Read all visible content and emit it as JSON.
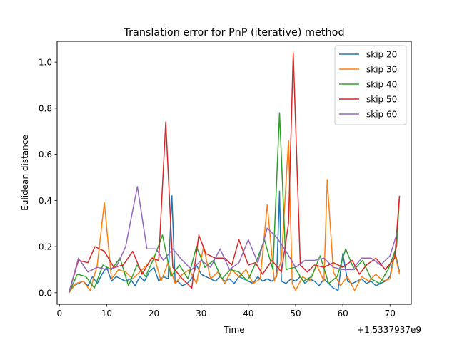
{
  "chart_data": {
    "type": "line",
    "title": "Translation error for PnP (iterative) method",
    "xlabel": "Time",
    "ylabel": "Eulidean distance",
    "x_offset_label": "+1.5337937e9",
    "xlim": [
      -0.5,
      74.5
    ],
    "ylim": [
      -0.05,
      1.09
    ],
    "x_ticks": [
      0,
      10,
      20,
      30,
      40,
      50,
      60,
      70
    ],
    "x_tick_labels": [
      "0",
      "10",
      "20",
      "30",
      "40",
      "50",
      "60",
      "70"
    ],
    "y_ticks": [
      0.0,
      0.2,
      0.4,
      0.6,
      0.8,
      1.0
    ],
    "y_tick_labels": [
      "0.0",
      "0.2",
      "0.4",
      "0.6",
      "0.8",
      "1.0"
    ],
    "grid": false,
    "legend_position": "top-right",
    "series": [
      {
        "name": "skip 20",
        "color": "#1f77b4",
        "x": [
          2,
          3,
          4,
          5,
          6,
          7,
          8,
          9,
          10,
          11,
          12,
          13,
          14,
          15,
          16,
          17,
          18,
          19,
          20,
          21,
          22,
          23,
          23.8,
          24.5,
          25,
          26,
          27,
          28,
          29,
          30,
          31,
          32,
          33,
          34,
          35,
          36,
          37,
          38,
          39,
          40,
          41,
          42,
          43,
          44,
          45,
          46,
          46.6,
          47,
          48,
          49,
          50,
          51,
          52,
          53,
          54,
          55,
          56,
          57,
          58,
          59,
          60,
          61,
          62,
          63,
          64,
          65,
          66,
          67,
          68,
          69,
          70,
          71,
          72
        ],
        "values": [
          0.0,
          0.03,
          0.04,
          0.05,
          0.03,
          0.07,
          0.04,
          0.08,
          0.11,
          0.05,
          0.07,
          0.06,
          0.05,
          0.06,
          0.03,
          0.07,
          0.05,
          0.09,
          0.11,
          0.05,
          0.07,
          0.06,
          0.42,
          0.04,
          0.05,
          0.03,
          0.04,
          0.06,
          0.12,
          0.08,
          0.07,
          0.06,
          0.05,
          0.07,
          0.05,
          0.06,
          0.04,
          0.07,
          0.06,
          0.05,
          0.04,
          0.07,
          0.05,
          0.06,
          0.05,
          0.07,
          0.44,
          0.05,
          0.04,
          0.06,
          0.05,
          0.07,
          0.04,
          0.06,
          0.05,
          0.03,
          0.06,
          0.04,
          0.02,
          0.01,
          0.17,
          0.05,
          0.04,
          0.05,
          0.06,
          0.04,
          0.05,
          0.03,
          0.04,
          0.05,
          0.07,
          0.18,
          0.09
        ]
      },
      {
        "name": "skip 30",
        "color": "#ff7f0e",
        "x": [
          2,
          3.5,
          5,
          6.5,
          8,
          9.5,
          11,
          12.5,
          14,
          15.5,
          17,
          18.5,
          20,
          21.5,
          23,
          24.5,
          26,
          27.5,
          29,
          30.5,
          32,
          33.5,
          35,
          36.5,
          38,
          39.5,
          41,
          42.5,
          44,
          45.5,
          47,
          48.5,
          49.3,
          50,
          51.5,
          53,
          54.5,
          56,
          56.7,
          58,
          59.5,
          61,
          62.5,
          64,
          65.5,
          67,
          68.5,
          70,
          71,
          72
        ],
        "values": [
          0.0,
          0.04,
          0.05,
          0.01,
          0.12,
          0.39,
          0.06,
          0.1,
          0.09,
          0.06,
          0.09,
          0.12,
          0.16,
          0.05,
          0.13,
          0.04,
          0.08,
          0.1,
          0.04,
          0.2,
          0.06,
          0.09,
          0.04,
          0.1,
          0.07,
          0.1,
          0.04,
          0.06,
          0.38,
          0.05,
          0.14,
          0.66,
          0.04,
          0.01,
          0.07,
          0.05,
          0.12,
          0.05,
          0.49,
          0.09,
          0.03,
          0.07,
          0.01,
          0.07,
          0.05,
          0.08,
          0.05,
          0.06,
          0.17,
          0.08
        ]
      },
      {
        "name": "skip 40",
        "color": "#2ca02c",
        "x": [
          2,
          3.8,
          5.6,
          7.4,
          9.2,
          11,
          12.8,
          14.6,
          16.4,
          18.2,
          20,
          21.8,
          23.6,
          25.4,
          27.2,
          29,
          30.8,
          32.6,
          34.4,
          36.2,
          38,
          39.8,
          41.6,
          43.4,
          45.2,
          46.6,
          48,
          49.8,
          51.6,
          53.4,
          55.2,
          57,
          58.8,
          60.6,
          62.4,
          64.2,
          66,
          67.8,
          69.6,
          71.4,
          72
        ],
        "values": [
          0.0,
          0.08,
          0.07,
          0.02,
          0.12,
          0.1,
          0.15,
          0.03,
          0.12,
          0.07,
          0.15,
          0.25,
          0.07,
          0.12,
          0.06,
          0.2,
          0.11,
          0.14,
          0.06,
          0.1,
          0.09,
          0.05,
          0.13,
          0.23,
          0.1,
          0.78,
          0.1,
          0.11,
          0.05,
          0.07,
          0.16,
          0.04,
          0.07,
          0.19,
          0.1,
          0.14,
          0.06,
          0.04,
          0.1,
          0.2,
          0.42
        ]
      },
      {
        "name": "skip 50",
        "color": "#d62728",
        "x": [
          2,
          4,
          6,
          7.5,
          9.5,
          11.5,
          13.5,
          15.5,
          17.5,
          19.5,
          21,
          22.5,
          24,
          26,
          28,
          29.5,
          31,
          33,
          35,
          36.5,
          38,
          40,
          41.5,
          43,
          45,
          47,
          48.5,
          49.5,
          51,
          52.5,
          54,
          56,
          58,
          60,
          62,
          63.5,
          65,
          67,
          69,
          71,
          72
        ],
        "values": [
          0.0,
          0.14,
          0.13,
          0.2,
          0.18,
          0.11,
          0.12,
          0.18,
          0.08,
          0.15,
          0.14,
          0.74,
          0.11,
          0.06,
          0.02,
          0.25,
          0.17,
          0.15,
          0.15,
          0.12,
          0.23,
          0.12,
          0.13,
          0.08,
          0.14,
          0.09,
          0.3,
          1.04,
          0.12,
          0.09,
          0.12,
          0.11,
          0.13,
          0.11,
          0.14,
          0.08,
          0.12,
          0.15,
          0.1,
          0.15,
          0.42
        ]
      },
      {
        "name": "skip 60",
        "color": "#9467bd",
        "x": [
          2,
          4,
          6,
          8,
          10,
          12,
          14,
          16.5,
          18.5,
          20.5,
          22,
          24,
          26,
          28,
          30,
          32,
          34,
          36,
          38,
          40,
          42,
          44,
          46,
          48,
          50,
          52,
          54,
          56,
          58,
          60,
          62,
          64,
          66,
          68,
          70,
          71.5
        ],
        "values": [
          0.0,
          0.15,
          0.09,
          0.11,
          0.1,
          0.11,
          0.2,
          0.46,
          0.19,
          0.19,
          0.14,
          0.19,
          0.14,
          0.1,
          0.14,
          0.11,
          0.19,
          0.1,
          0.13,
          0.23,
          0.13,
          0.28,
          0.24,
          0.18,
          0.11,
          0.14,
          0.14,
          0.15,
          0.11,
          0.1,
          0.1,
          0.15,
          0.15,
          0.12,
          0.16,
          0.26
        ]
      }
    ]
  }
}
